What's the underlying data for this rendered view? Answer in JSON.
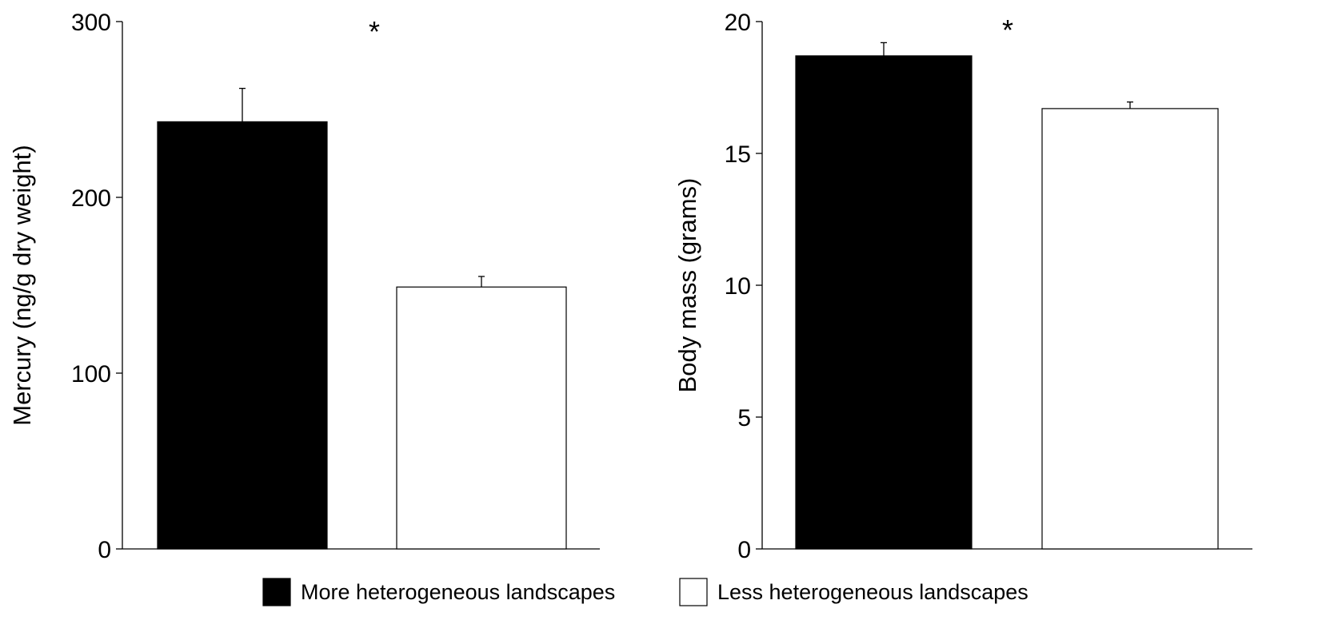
{
  "chart_data": [
    {
      "type": "bar",
      "categories": [
        "More heterogeneous landscapes",
        "Less heterogeneous landscapes"
      ],
      "values": [
        243,
        149
      ],
      "error_upper": [
        262,
        155
      ],
      "ylabel": "Mercury (ng/g dry weight)",
      "ylim": [
        0,
        300
      ],
      "yticks": [
        "0",
        "100",
        "200",
        "300"
      ],
      "annotation": "*",
      "grid": false
    },
    {
      "type": "bar",
      "categories": [
        "More heterogeneous landscapes",
        "Less heterogeneous landscapes"
      ],
      "values": [
        18.7,
        16.7
      ],
      "error_upper": [
        19.2,
        16.95
      ],
      "ylabel": "Body mass (grams)",
      "ylim": [
        0,
        20
      ],
      "yticks": [
        "0",
        "5",
        "10",
        "15",
        "20"
      ],
      "annotation": "*",
      "grid": false
    }
  ],
  "legend": {
    "placement": "bottom-center",
    "items": [
      {
        "label": "More heterogeneous landscapes",
        "color": "#000000"
      },
      {
        "label": "Less heterogeneous landscapes",
        "color": "#ffffff"
      }
    ]
  }
}
